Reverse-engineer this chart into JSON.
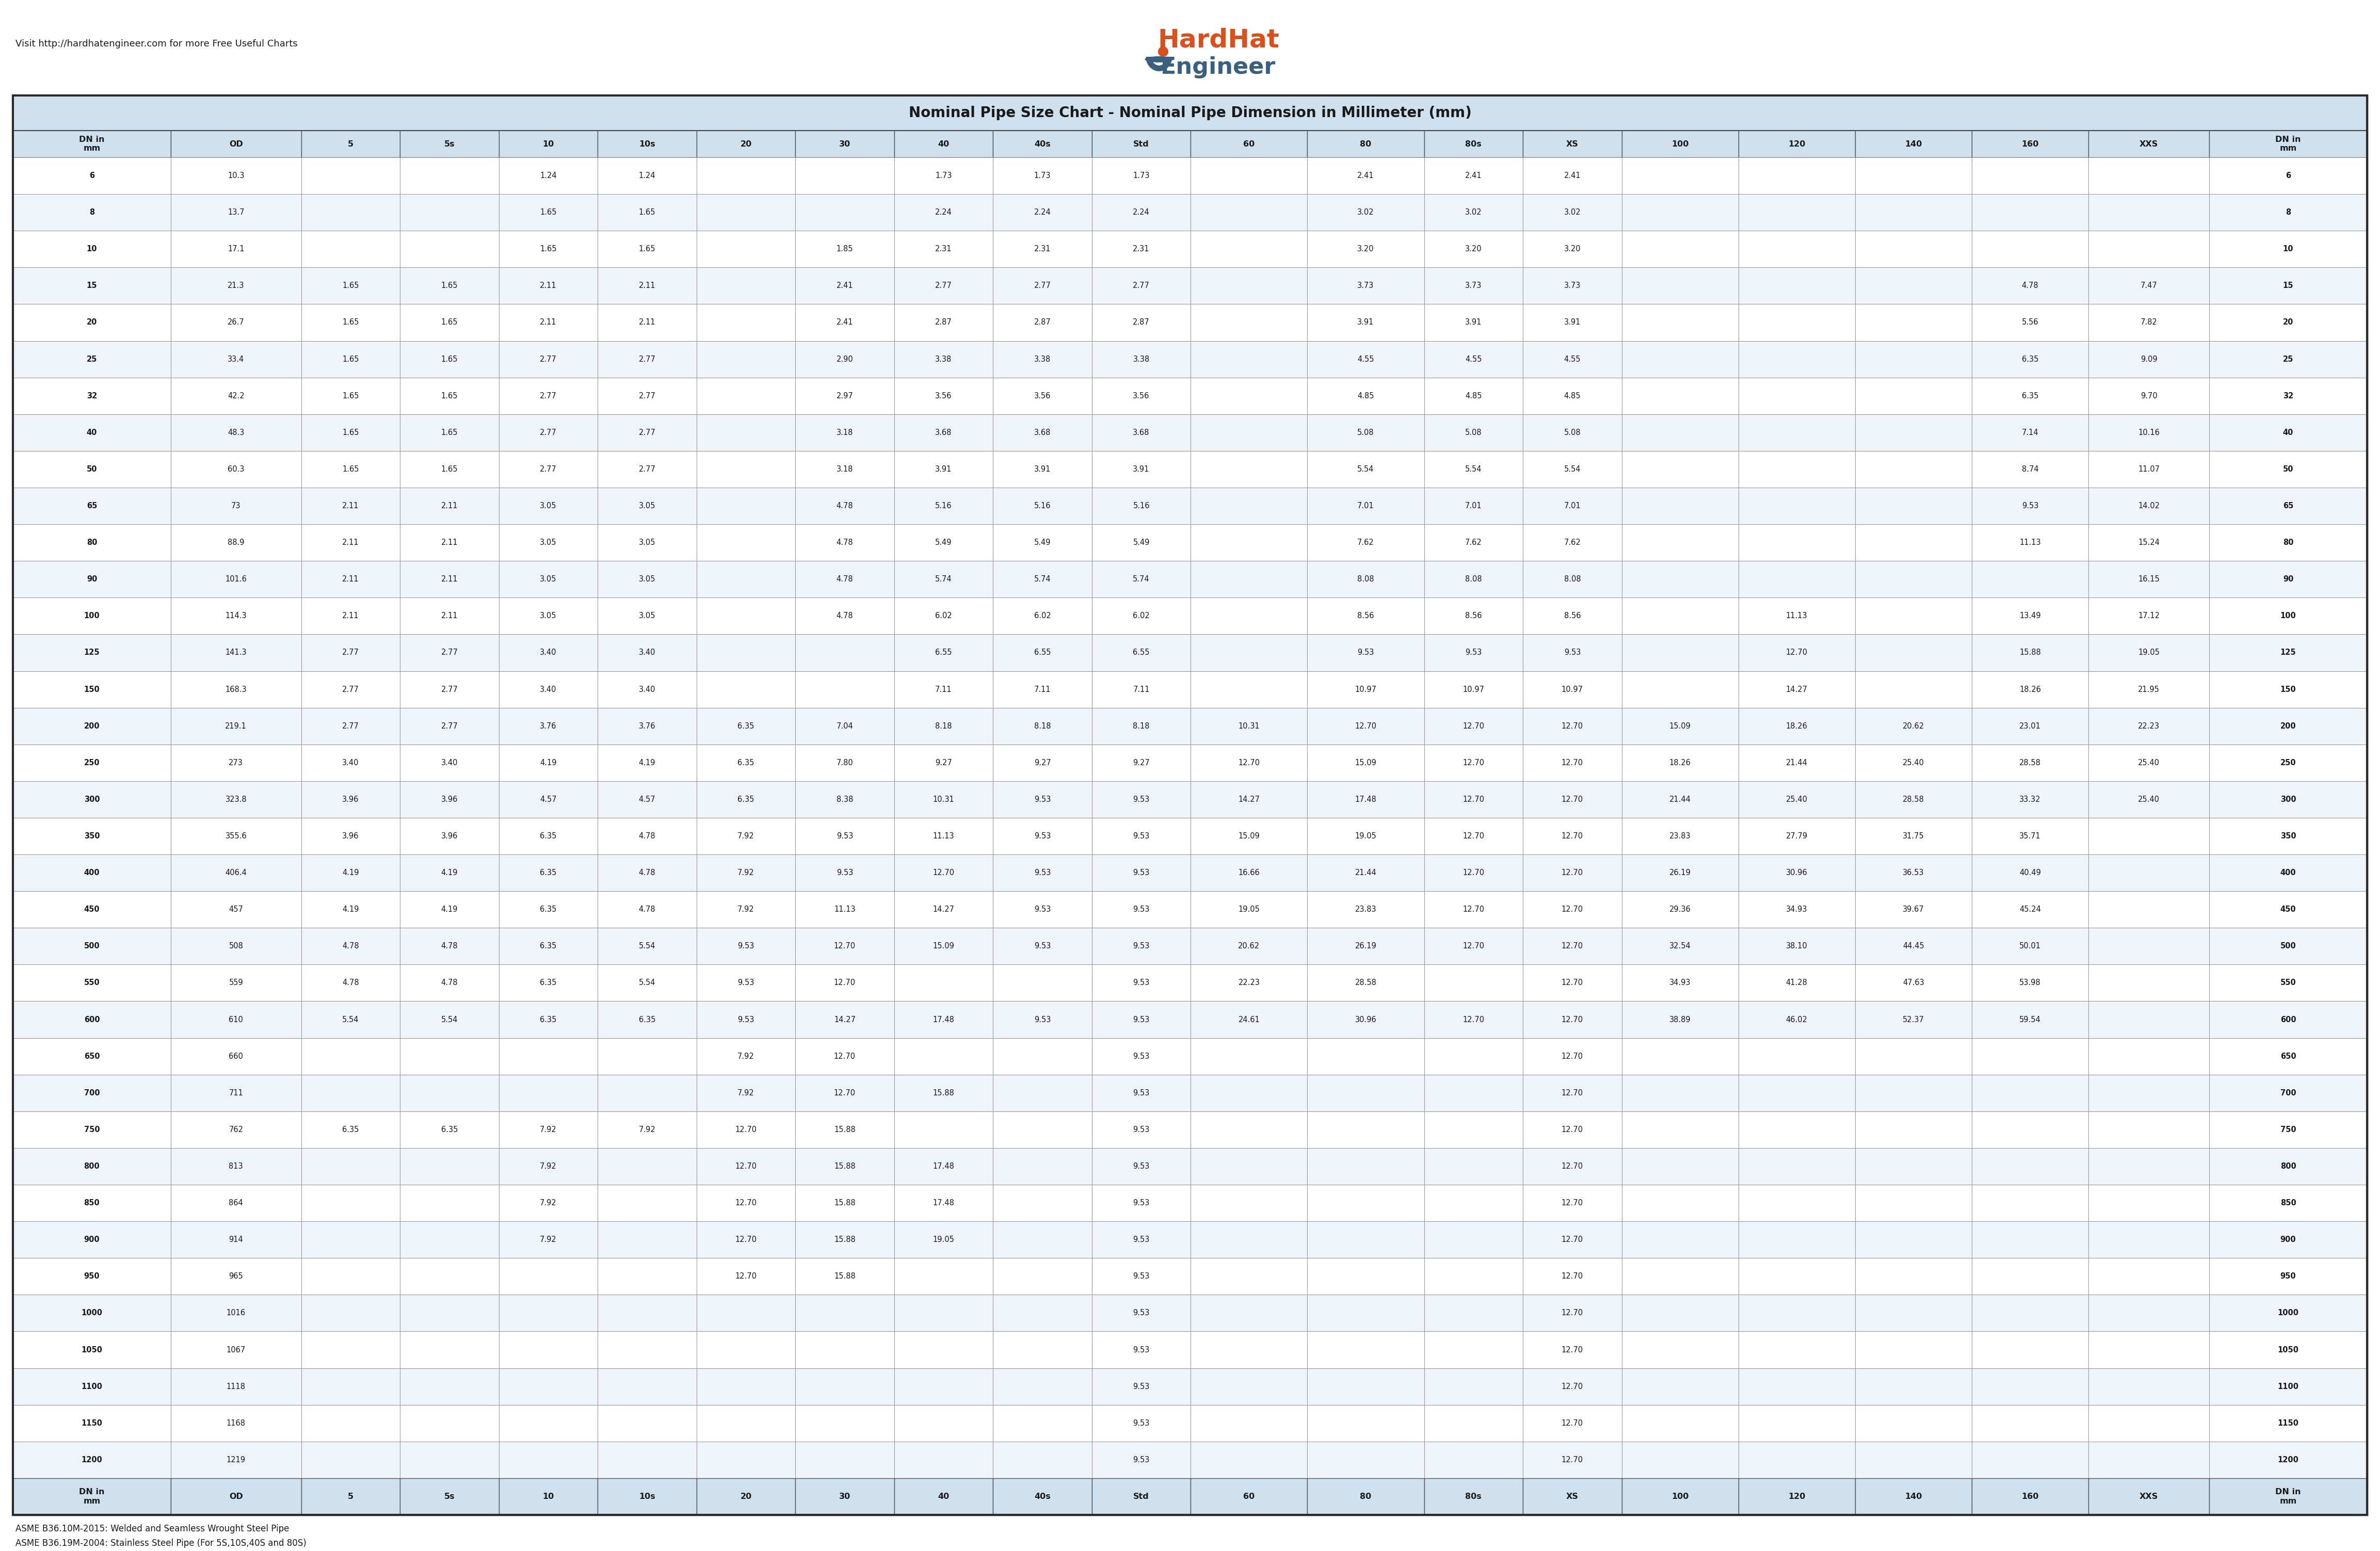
{
  "title": "Nominal Pipe Size Chart - Nominal Pipe Dimension in Millimeter (mm)",
  "header_bg": "#cfe0ee",
  "row_bg_white": "#ffffff",
  "row_bg_light": "#eef4f9",
  "border_dark": "#2a2a2a",
  "border_mid": "#555555",
  "border_light": "#aaaaaa",
  "text_color": "#1a1a1a",
  "subtitle_text": "Visit http://hardhatengineer.com for more Free Useful Charts",
  "footnote1": "ASME B36.10M-2015: Welded and Seamless Wrought Steel Pipe",
  "footnote2": "ASME B36.19M-2004: Stainless Steel Pipe (For 5S,10S,40S and 80S)",
  "logo_text1": "HardHat",
  "logo_text2": "Engineer",
  "logo_color1": "#d94f1e",
  "logo_color2": "#3a6080",
  "columns": [
    "DN in\nmm",
    "OD",
    "5",
    "5s",
    "10",
    "10s",
    "20",
    "30",
    "40",
    "40s",
    "Std",
    "60",
    "80",
    "80s",
    "XS",
    "100",
    "120",
    "140",
    "160",
    "XXS",
    "DN in\nmm"
  ],
  "col_widths_rel": [
    1.15,
    0.95,
    0.72,
    0.72,
    0.72,
    0.72,
    0.72,
    0.72,
    0.72,
    0.72,
    0.72,
    0.85,
    0.85,
    0.72,
    0.72,
    0.85,
    0.85,
    0.85,
    0.85,
    0.88,
    1.15
  ],
  "rows": [
    [
      "6",
      "10.3",
      "",
      "",
      "1.24",
      "1.24",
      "",
      "",
      "1.73",
      "1.73",
      "1.73",
      "",
      "2.41",
      "2.41",
      "2.41",
      "",
      "",
      "",
      "",
      "",
      "6"
    ],
    [
      "8",
      "13.7",
      "",
      "",
      "1.65",
      "1.65",
      "",
      "",
      "2.24",
      "2.24",
      "2.24",
      "",
      "3.02",
      "3.02",
      "3.02",
      "",
      "",
      "",
      "",
      "",
      "8"
    ],
    [
      "10",
      "17.1",
      "",
      "",
      "1.65",
      "1.65",
      "",
      "1.85",
      "2.31",
      "2.31",
      "2.31",
      "",
      "3.20",
      "3.20",
      "3.20",
      "",
      "",
      "",
      "",
      "",
      "10"
    ],
    [
      "15",
      "21.3",
      "1.65",
      "1.65",
      "2.11",
      "2.11",
      "",
      "2.41",
      "2.77",
      "2.77",
      "2.77",
      "",
      "3.73",
      "3.73",
      "3.73",
      "",
      "",
      "",
      "4.78",
      "7.47",
      "15"
    ],
    [
      "20",
      "26.7",
      "1.65",
      "1.65",
      "2.11",
      "2.11",
      "",
      "2.41",
      "2.87",
      "2.87",
      "2.87",
      "",
      "3.91",
      "3.91",
      "3.91",
      "",
      "",
      "",
      "5.56",
      "7.82",
      "20"
    ],
    [
      "25",
      "33.4",
      "1.65",
      "1.65",
      "2.77",
      "2.77",
      "",
      "2.90",
      "3.38",
      "3.38",
      "3.38",
      "",
      "4.55",
      "4.55",
      "4.55",
      "",
      "",
      "",
      "6.35",
      "9.09",
      "25"
    ],
    [
      "32",
      "42.2",
      "1.65",
      "1.65",
      "2.77",
      "2.77",
      "",
      "2.97",
      "3.56",
      "3.56",
      "3.56",
      "",
      "4.85",
      "4.85",
      "4.85",
      "",
      "",
      "",
      "6.35",
      "9.70",
      "32"
    ],
    [
      "40",
      "48.3",
      "1.65",
      "1.65",
      "2.77",
      "2.77",
      "",
      "3.18",
      "3.68",
      "3.68",
      "3.68",
      "",
      "5.08",
      "5.08",
      "5.08",
      "",
      "",
      "",
      "7.14",
      "10.16",
      "40"
    ],
    [
      "50",
      "60.3",
      "1.65",
      "1.65",
      "2.77",
      "2.77",
      "",
      "3.18",
      "3.91",
      "3.91",
      "3.91",
      "",
      "5.54",
      "5.54",
      "5.54",
      "",
      "",
      "",
      "8.74",
      "11.07",
      "50"
    ],
    [
      "65",
      "73",
      "2.11",
      "2.11",
      "3.05",
      "3.05",
      "",
      "4.78",
      "5.16",
      "5.16",
      "5.16",
      "",
      "7.01",
      "7.01",
      "7.01",
      "",
      "",
      "",
      "9.53",
      "14.02",
      "65"
    ],
    [
      "80",
      "88.9",
      "2.11",
      "2.11",
      "3.05",
      "3.05",
      "",
      "4.78",
      "5.49",
      "5.49",
      "5.49",
      "",
      "7.62",
      "7.62",
      "7.62",
      "",
      "",
      "",
      "11.13",
      "15.24",
      "80"
    ],
    [
      "90",
      "101.6",
      "2.11",
      "2.11",
      "3.05",
      "3.05",
      "",
      "4.78",
      "5.74",
      "5.74",
      "5.74",
      "",
      "8.08",
      "8.08",
      "8.08",
      "",
      "",
      "",
      "",
      "16.15",
      "90"
    ],
    [
      "100",
      "114.3",
      "2.11",
      "2.11",
      "3.05",
      "3.05",
      "",
      "4.78",
      "6.02",
      "6.02",
      "6.02",
      "",
      "8.56",
      "8.56",
      "8.56",
      "",
      "11.13",
      "",
      "13.49",
      "17.12",
      "100"
    ],
    [
      "125",
      "141.3",
      "2.77",
      "2.77",
      "3.40",
      "3.40",
      "",
      "",
      "6.55",
      "6.55",
      "6.55",
      "",
      "9.53",
      "9.53",
      "9.53",
      "",
      "12.70",
      "",
      "15.88",
      "19.05",
      "125"
    ],
    [
      "150",
      "168.3",
      "2.77",
      "2.77",
      "3.40",
      "3.40",
      "",
      "",
      "7.11",
      "7.11",
      "7.11",
      "",
      "10.97",
      "10.97",
      "10.97",
      "",
      "14.27",
      "",
      "18.26",
      "21.95",
      "150"
    ],
    [
      "200",
      "219.1",
      "2.77",
      "2.77",
      "3.76",
      "3.76",
      "6.35",
      "7.04",
      "8.18",
      "8.18",
      "8.18",
      "10.31",
      "12.70",
      "12.70",
      "12.70",
      "15.09",
      "18.26",
      "20.62",
      "23.01",
      "22.23",
      "200"
    ],
    [
      "250",
      "273",
      "3.40",
      "3.40",
      "4.19",
      "4.19",
      "6.35",
      "7.80",
      "9.27",
      "9.27",
      "9.27",
      "12.70",
      "15.09",
      "12.70",
      "12.70",
      "18.26",
      "21.44",
      "25.40",
      "28.58",
      "25.40",
      "250"
    ],
    [
      "300",
      "323.8",
      "3.96",
      "3.96",
      "4.57",
      "4.57",
      "6.35",
      "8.38",
      "10.31",
      "9.53",
      "9.53",
      "14.27",
      "17.48",
      "12.70",
      "12.70",
      "21.44",
      "25.40",
      "28.58",
      "33.32",
      "25.40",
      "300"
    ],
    [
      "350",
      "355.6",
      "3.96",
      "3.96",
      "6.35",
      "4.78",
      "7.92",
      "9.53",
      "11.13",
      "9.53",
      "9.53",
      "15.09",
      "19.05",
      "12.70",
      "12.70",
      "23.83",
      "27.79",
      "31.75",
      "35.71",
      "",
      "350"
    ],
    [
      "400",
      "406.4",
      "4.19",
      "4.19",
      "6.35",
      "4.78",
      "7.92",
      "9.53",
      "12.70",
      "9.53",
      "9.53",
      "16.66",
      "21.44",
      "12.70",
      "12.70",
      "26.19",
      "30.96",
      "36.53",
      "40.49",
      "",
      "400"
    ],
    [
      "450",
      "457",
      "4.19",
      "4.19",
      "6.35",
      "4.78",
      "7.92",
      "11.13",
      "14.27",
      "9.53",
      "9.53",
      "19.05",
      "23.83",
      "12.70",
      "12.70",
      "29.36",
      "34.93",
      "39.67",
      "45.24",
      "",
      "450"
    ],
    [
      "500",
      "508",
      "4.78",
      "4.78",
      "6.35",
      "5.54",
      "9.53",
      "12.70",
      "15.09",
      "9.53",
      "9.53",
      "20.62",
      "26.19",
      "12.70",
      "12.70",
      "32.54",
      "38.10",
      "44.45",
      "50.01",
      "",
      "500"
    ],
    [
      "550",
      "559",
      "4.78",
      "4.78",
      "6.35",
      "5.54",
      "9.53",
      "12.70",
      "",
      "",
      "9.53",
      "22.23",
      "28.58",
      "",
      "12.70",
      "34.93",
      "41.28",
      "47.63",
      "53.98",
      "",
      "550"
    ],
    [
      "600",
      "610",
      "5.54",
      "5.54",
      "6.35",
      "6.35",
      "9.53",
      "14.27",
      "17.48",
      "9.53",
      "9.53",
      "24.61",
      "30.96",
      "12.70",
      "12.70",
      "38.89",
      "46.02",
      "52.37",
      "59.54",
      "",
      "600"
    ],
    [
      "650",
      "660",
      "",
      "",
      "",
      "",
      "7.92",
      "12.70",
      "",
      "",
      "9.53",
      "",
      "",
      "",
      "12.70",
      "",
      "",
      "",
      "",
      "",
      "650"
    ],
    [
      "700",
      "711",
      "",
      "",
      "",
      "",
      "7.92",
      "12.70",
      "15.88",
      "",
      "9.53",
      "",
      "",
      "",
      "12.70",
      "",
      "",
      "",
      "",
      "",
      "700"
    ],
    [
      "750",
      "762",
      "6.35",
      "6.35",
      "7.92",
      "7.92",
      "12.70",
      "15.88",
      "",
      "",
      "9.53",
      "",
      "",
      "",
      "12.70",
      "",
      "",
      "",
      "",
      "",
      "750"
    ],
    [
      "800",
      "813",
      "",
      "",
      "7.92",
      "",
      "12.70",
      "15.88",
      "17.48",
      "",
      "9.53",
      "",
      "",
      "",
      "12.70",
      "",
      "",
      "",
      "",
      "",
      "800"
    ],
    [
      "850",
      "864",
      "",
      "",
      "7.92",
      "",
      "12.70",
      "15.88",
      "17.48",
      "",
      "9.53",
      "",
      "",
      "",
      "12.70",
      "",
      "",
      "",
      "",
      "",
      "850"
    ],
    [
      "900",
      "914",
      "",
      "",
      "7.92",
      "",
      "12.70",
      "15.88",
      "19.05",
      "",
      "9.53",
      "",
      "",
      "",
      "12.70",
      "",
      "",
      "",
      "",
      "",
      "900"
    ],
    [
      "950",
      "965",
      "",
      "",
      "",
      "",
      "12.70",
      "15.88",
      "",
      "",
      "9.53",
      "",
      "",
      "",
      "12.70",
      "",
      "",
      "",
      "",
      "",
      "950"
    ],
    [
      "1000",
      "1016",
      "",
      "",
      "",
      "",
      "",
      "",
      "",
      "",
      "9.53",
      "",
      "",
      "",
      "12.70",
      "",
      "",
      "",
      "",
      "",
      "1000"
    ],
    [
      "1050",
      "1067",
      "",
      "",
      "",
      "",
      "",
      "",
      "",
      "",
      "9.53",
      "",
      "",
      "",
      "12.70",
      "",
      "",
      "",
      "",
      "",
      "1050"
    ],
    [
      "1100",
      "1118",
      "",
      "",
      "",
      "",
      "",
      "",
      "",
      "",
      "9.53",
      "",
      "",
      "",
      "12.70",
      "",
      "",
      "",
      "",
      "",
      "1100"
    ],
    [
      "1150",
      "1168",
      "",
      "",
      "",
      "",
      "",
      "",
      "",
      "",
      "9.53",
      "",
      "",
      "",
      "12.70",
      "",
      "",
      "",
      "",
      "",
      "1150"
    ],
    [
      "1200",
      "1219",
      "",
      "",
      "",
      "",
      "",
      "",
      "",
      "",
      "9.53",
      "",
      "",
      "",
      "12.70",
      "",
      "",
      "",
      "",
      "",
      "1200"
    ]
  ]
}
